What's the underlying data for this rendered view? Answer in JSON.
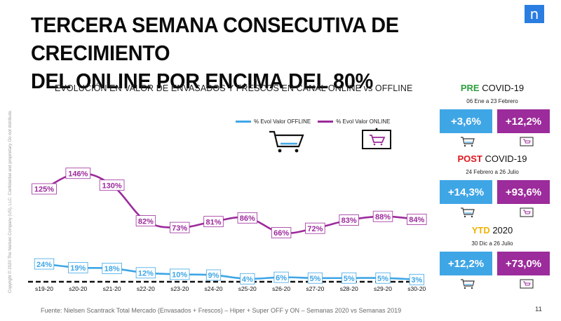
{
  "slide": {
    "title_line1": "TERCERA SEMANA CONSECUTIVA DE CRECIMIENTO",
    "title_line2": "DEL ONLINE POR ENCIMA DEL 80%",
    "logo_glyph": "n",
    "copyright": "Copyright © 2020 The Nielsen Company (US), LLC. Confidential and proprietary. Do not distribute.",
    "source": "Fuente: Nielsen Scantrack Total Mercado (Envasados + Frescos) – Hiper + Super OFF y ON – Semanas 2020 vs Semanas 2019",
    "page_number": "11"
  },
  "chart_data": {
    "type": "line",
    "title": "EVOLUCIÓN EN VALOR DE ENVASADOS Y FRESCOS EN CANAL ONLINE vs OFFLINE",
    "categories": [
      "s19-20",
      "s20-20",
      "s21-20",
      "s22-20",
      "s23-20",
      "s24-20",
      "s25-20",
      "s26-20",
      "s27-20",
      "s28-20",
      "s29-20",
      "s30-20"
    ],
    "series": [
      {
        "name": "% Evol Valor OFFLINE",
        "color": "#3fa6e6",
        "values": [
          24,
          19,
          18,
          12,
          10,
          9,
          4,
          6,
          5,
          5,
          5,
          3
        ],
        "labels": [
          "24%",
          "19%",
          "18%",
          "12%",
          "10%",
          "9%",
          "4%",
          "6%",
          "5%",
          "5%",
          "5%",
          "3%"
        ]
      },
      {
        "name": "% Evol Valor ONLINE",
        "color": "#9c2b9b",
        "values": [
          125,
          146,
          130,
          82,
          73,
          81,
          86,
          66,
          72,
          83,
          88,
          84
        ],
        "labels": [
          "125%",
          "146%",
          "130%",
          "82%",
          "73%",
          "81%",
          "86%",
          "66%",
          "72%",
          "83%",
          "88%",
          "84%"
        ]
      }
    ],
    "ylim": [
      0,
      160
    ],
    "grid": false,
    "zero_line": "dashed",
    "legend": "top-center"
  },
  "panels": [
    {
      "highlight": "PRE",
      "highlight_color": "#2e9e3e",
      "period": "COVID-19",
      "range": "06 Ene a 23 Febrero",
      "offline": "+3,6%",
      "online": "+12,2%"
    },
    {
      "highlight": "POST",
      "highlight_color": "#e0151c",
      "period": "COVID-19",
      "range": "24 Febrero a 26 Julio",
      "offline": "+14,3%",
      "online": "+93,6%"
    },
    {
      "highlight": "YTD",
      "highlight_color": "#f2b200",
      "period": "2020",
      "range": "30 Dic a 26 Julio",
      "offline": "+12,2%",
      "online": "+73,0%"
    }
  ],
  "icons": {
    "offline": "shopping-cart-icon",
    "online": "computer-cart-icon"
  }
}
